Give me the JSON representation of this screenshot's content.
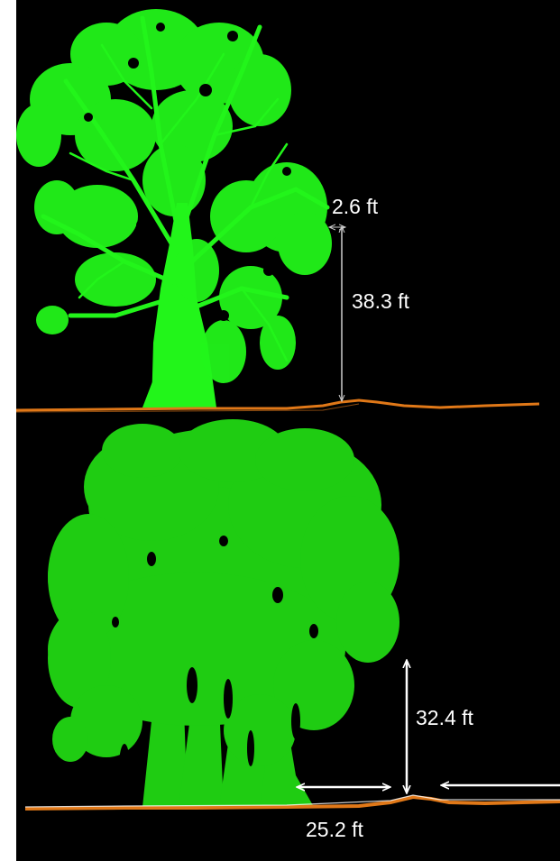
{
  "colors": {
    "background": "#000000",
    "margin": "#ffffff",
    "tree_upper": "#22f51a",
    "tree_lower": "#1fcc12",
    "ground": "#e07818",
    "measure_line": "#ffffff"
  },
  "upper_scene": {
    "measurements": {
      "gap_width": "2.6 ft",
      "height": "38.3 ft"
    }
  },
  "lower_scene": {
    "measurements": {
      "height": "32.4 ft",
      "width": "25.2 ft"
    }
  }
}
